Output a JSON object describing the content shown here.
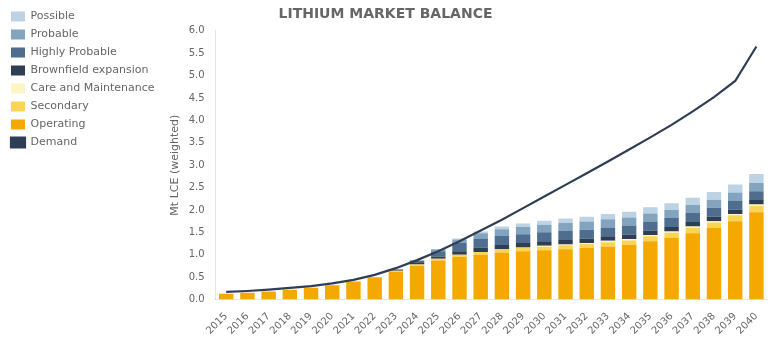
{
  "chart_data": {
    "type": "bar",
    "title": "LITHIUM MARKET BALANCE",
    "ylabel": "Mt LCE (weighted)",
    "categories": [
      "2015",
      "2016",
      "2017",
      "2018",
      "2019",
      "2020",
      "2021",
      "2022",
      "2023",
      "2024",
      "2025",
      "2026",
      "2027",
      "2028",
      "2029",
      "2030",
      "2031",
      "2032",
      "2033",
      "2034",
      "2035",
      "2036",
      "2037",
      "2038",
      "2039",
      "2040"
    ],
    "series": [
      {
        "name": "Operating",
        "color": "#F5A800",
        "values": [
          0.13,
          0.15,
          0.18,
          0.22,
          0.26,
          0.32,
          0.4,
          0.5,
          0.62,
          0.75,
          0.87,
          0.95,
          1.0,
          1.05,
          1.08,
          1.1,
          1.12,
          1.15,
          1.18,
          1.22,
          1.3,
          1.38,
          1.48,
          1.6,
          1.75,
          1.95
        ]
      },
      {
        "name": "Secondary",
        "color": "#FAD555",
        "values": [
          0.0,
          0.0,
          0.0,
          0.0,
          0.0,
          0.0,
          0.0,
          0.0,
          0.02,
          0.03,
          0.04,
          0.05,
          0.06,
          0.07,
          0.08,
          0.08,
          0.09,
          0.09,
          0.1,
          0.1,
          0.11,
          0.11,
          0.12,
          0.12,
          0.13,
          0.14
        ]
      },
      {
        "name": "Care and Maintenance",
        "color": "#FFF5C0",
        "values": [
          0.0,
          0.0,
          0.0,
          0.0,
          0.0,
          0.0,
          0.0,
          0.0,
          0.0,
          0.0,
          0.0,
          0.0,
          0.0,
          0.0,
          0.0,
          0.02,
          0.02,
          0.02,
          0.03,
          0.03,
          0.03,
          0.03,
          0.03,
          0.03,
          0.03,
          0.03
        ]
      },
      {
        "name": "Brownfield expansion",
        "color": "#2E3F55",
        "values": [
          0.0,
          0.0,
          0.0,
          0.0,
          0.0,
          0.0,
          0.0,
          0.0,
          0.03,
          0.05,
          0.05,
          0.08,
          0.1,
          0.1,
          0.1,
          0.1,
          0.1,
          0.1,
          0.1,
          0.1,
          0.1,
          0.1,
          0.1,
          0.1,
          0.1,
          0.1
        ]
      },
      {
        "name": "Highly Probable",
        "color": "#4F6E8F",
        "values": [
          0.0,
          0.0,
          0.0,
          0.0,
          0.0,
          0.0,
          0.0,
          0.0,
          0.0,
          0.04,
          0.12,
          0.18,
          0.2,
          0.2,
          0.2,
          0.2,
          0.2,
          0.2,
          0.2,
          0.2,
          0.2,
          0.2,
          0.2,
          0.2,
          0.2,
          0.2
        ]
      },
      {
        "name": "Probable",
        "color": "#82A4BF",
        "values": [
          0.0,
          0.0,
          0.0,
          0.0,
          0.0,
          0.0,
          0.0,
          0.0,
          0.0,
          0.0,
          0.04,
          0.08,
          0.12,
          0.15,
          0.16,
          0.17,
          0.18,
          0.18,
          0.18,
          0.18,
          0.18,
          0.18,
          0.18,
          0.18,
          0.18,
          0.18
        ]
      },
      {
        "name": "Possible",
        "color": "#BDD3E3",
        "values": [
          0.0,
          0.0,
          0.0,
          0.0,
          0.0,
          0.0,
          0.0,
          0.0,
          0.0,
          0.0,
          0.0,
          0.02,
          0.04,
          0.06,
          0.08,
          0.09,
          0.1,
          0.11,
          0.12,
          0.13,
          0.14,
          0.15,
          0.16,
          0.17,
          0.18,
          0.2
        ]
      },
      {
        "name": "Demand",
        "type": "line",
        "color": "#2E3F55",
        "values": [
          0.17,
          0.19,
          0.22,
          0.26,
          0.3,
          0.36,
          0.44,
          0.55,
          0.7,
          0.88,
          1.08,
          1.3,
          1.54,
          1.78,
          2.04,
          2.3,
          2.56,
          2.82,
          3.08,
          3.35,
          3.62,
          3.9,
          4.2,
          4.52,
          4.88,
          5.65
        ]
      }
    ],
    "stacked": true,
    "ylim": [
      0,
      6.0
    ],
    "yticks": [
      {
        "value": 0.0,
        "label": "0.0"
      },
      {
        "value": 0.5,
        "label": "0.5"
      },
      {
        "value": 1.0,
        "label": "1.0"
      },
      {
        "value": 1.5,
        "label": "1.5"
      },
      {
        "value": 2.0,
        "label": "2.0"
      },
      {
        "value": 2.5,
        "label": "2.5"
      },
      {
        "value": 3.0,
        "label": "3.0"
      },
      {
        "value": 3.5,
        "label": "3.5"
      },
      {
        "value": 4.0,
        "label": "4.0"
      },
      {
        "value": 4.5,
        "label": "4.5"
      },
      {
        "value": 5.0,
        "label": "5.0"
      },
      {
        "value": 5.5,
        "label": "5.5"
      },
      {
        "value": 6.0,
        "label": "6.0"
      }
    ],
    "grid": false,
    "legend": "upper left"
  }
}
